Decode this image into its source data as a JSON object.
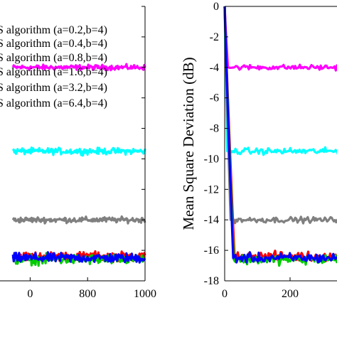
{
  "chart_data": [
    {
      "type": "line",
      "panel": "left",
      "xlabel": "",
      "ylabel": "",
      "xlim": [
        0,
        1000
      ],
      "ylim": [
        -18,
        0
      ],
      "x_ticks": [
        "0",
        "800",
        "1000"
      ],
      "legend": {
        "placement": "top-left",
        "entries": [
          "S algorithm (a=0.2,b=4)",
          "S algorithm (a=0.4,b=4)",
          "S algorithm (a=0.8,b=4)",
          "S algorithm (a=1.6,b=4)",
          "S algorithm (a=3.2,b=4)",
          "S algorithm (a=6.4,b=4)"
        ]
      },
      "series": [
        {
          "color": "#ff00ff",
          "x": [
            0,
            1000
          ],
          "values": [
            -4.0,
            -4.0
          ]
        },
        {
          "color": "#00ffff",
          "x": [
            0,
            1000
          ],
          "values": [
            -9.5,
            -9.5
          ]
        },
        {
          "color": "#808080",
          "x": [
            0,
            1000
          ],
          "values": [
            -14.0,
            -14.0
          ]
        },
        {
          "color": "#ff0000",
          "x": [
            0,
            1000
          ],
          "values": [
            -16.4,
            -16.4
          ]
        },
        {
          "color": "#00cc00",
          "x": [
            0,
            1000
          ],
          "values": [
            -16.6,
            -16.6
          ]
        },
        {
          "color": "#0000ff",
          "x": [
            0,
            1000
          ],
          "values": [
            -16.5,
            -16.5
          ]
        }
      ]
    },
    {
      "type": "line",
      "panel": "right",
      "xlabel": "",
      "ylabel": "Mean Square Deviation (dB)",
      "xlim": [
        0,
        400
      ],
      "ylim": [
        -18,
        0
      ],
      "x_ticks": [
        "0",
        "200"
      ],
      "y_ticks": [
        "0",
        "-2",
        "-4",
        "-6",
        "-8",
        "-10",
        "-12",
        "-14",
        "-16",
        "-18"
      ],
      "series": [
        {
          "color": "#ff00ff",
          "x": [
            0,
            10,
            400
          ],
          "values": [
            0,
            -4.0,
            -4.0
          ]
        },
        {
          "color": "#00ffff",
          "x": [
            0,
            8,
            400
          ],
          "values": [
            0,
            -9.5,
            -9.5
          ]
        },
        {
          "color": "#808080",
          "x": [
            0,
            18,
            400
          ],
          "values": [
            0,
            -14.0,
            -14.0
          ]
        },
        {
          "color": "#ff0000",
          "x": [
            0,
            30,
            400
          ],
          "values": [
            0,
            -16.4,
            -16.4
          ]
        },
        {
          "color": "#00cc00",
          "x": [
            0,
            28,
            400
          ],
          "values": [
            0,
            -16.6,
            -16.6
          ]
        },
        {
          "color": "#0000ff",
          "x": [
            0,
            26,
            400
          ],
          "values": [
            0,
            -16.5,
            -16.5
          ]
        }
      ]
    }
  ]
}
